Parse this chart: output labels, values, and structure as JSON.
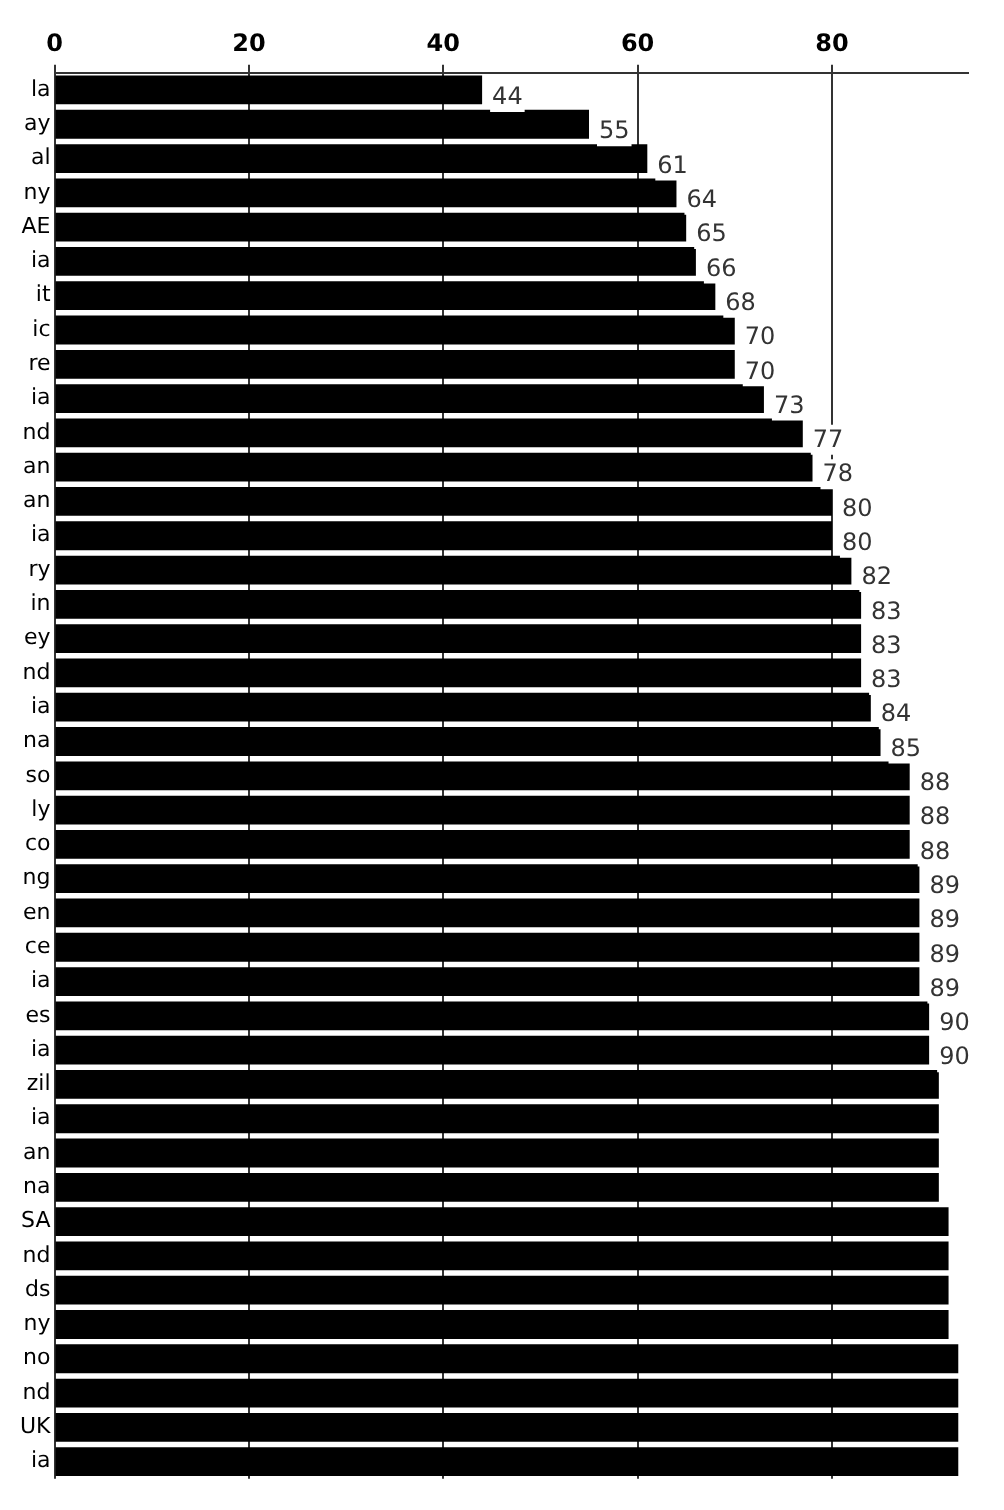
{
  "chart_data": {
    "type": "bar",
    "orientation": "horizontal",
    "categories": [
      "la",
      "ay",
      "al",
      "ny",
      "AE",
      "ia",
      "it",
      "ic",
      "re",
      "ia",
      "nd",
      "an",
      "an",
      "ia",
      "ry",
      "in",
      "ey",
      "nd",
      "ia",
      "na",
      "so",
      "ly",
      "co",
      "ng",
      "en",
      "ce",
      "ia",
      "es",
      "ia",
      "zil",
      "ia",
      "an",
      "na",
      "SA",
      "nd",
      "ds",
      "ny",
      "no",
      "nd",
      "UK",
      "ia"
    ],
    "values": [
      44,
      55,
      61,
      64,
      65,
      66,
      68,
      70,
      70,
      73,
      77,
      78,
      80,
      80,
      82,
      83,
      83,
      83,
      84,
      85,
      88,
      88,
      88,
      89,
      89,
      89,
      89,
      90,
      90,
      91,
      91,
      91,
      91,
      92,
      92,
      92,
      92,
      93,
      93,
      93,
      93
    ],
    "value_labels": [
      "44",
      "55",
      "61",
      "64",
      "65",
      "66",
      "68",
      "70",
      "70",
      "73",
      "77",
      "78",
      "80",
      "80",
      "82",
      "83",
      "83",
      "83",
      "84",
      "85",
      "88",
      "88",
      "88",
      "89",
      "89",
      "89",
      "89",
      "90",
      "90",
      null,
      null,
      null,
      null,
      null,
      null,
      null,
      null,
      null,
      null,
      null,
      null
    ],
    "color": "#000000",
    "xlim": [
      0,
      94
    ],
    "xticks": [
      0,
      20,
      40,
      60,
      80
    ],
    "grid": "x"
  }
}
